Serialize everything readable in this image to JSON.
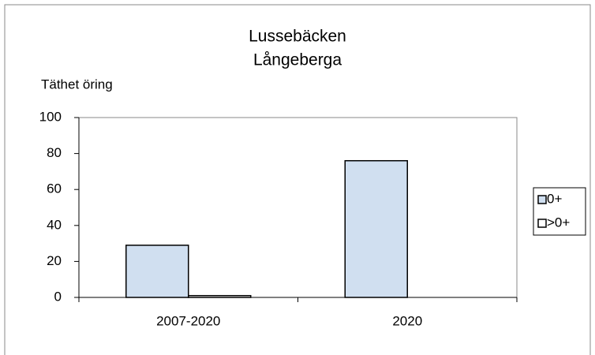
{
  "chart_data": {
    "type": "bar",
    "title": "Lussebäcken",
    "subtitle": "Långeberga",
    "y_label": "Täthet öring",
    "categories": [
      "2007-2020",
      "2020"
    ],
    "series": [
      {
        "name": "0+",
        "color": "#d0dff0",
        "values": [
          29,
          76
        ]
      },
      {
        "name": ">0+",
        "color": "#ffffff",
        "values": [
          1,
          0
        ]
      }
    ],
    "ylim": [
      0,
      100
    ],
    "yticks": [
      0,
      20,
      40,
      60,
      80,
      100
    ],
    "grid": false,
    "legend": "right"
  }
}
